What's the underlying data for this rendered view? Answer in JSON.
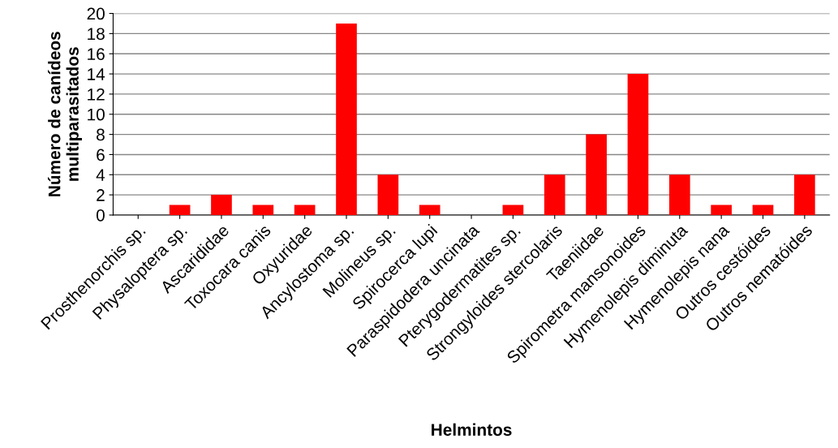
{
  "chart_data": {
    "type": "bar",
    "xlabel": "Helmintos",
    "ylabel": "Número de canídeos\nmultiparasitados",
    "categories": [
      "Prosthenorchis sp.",
      "Physaloptera sp.",
      "Ascarididae",
      "Toxocara canis",
      "Oxyuridae",
      "Ancylostoma sp.",
      "Molineus sp.",
      "Spirocerca lupi",
      "Paraspidodera uncinata",
      "Pterygodermatites sp.",
      "Strongyloides stercolaris",
      "Taeniidae",
      "Spirometra mansonoides",
      "Hymenolepis diminuta",
      "Hymenolepis nana",
      "Outros cestóides",
      "Outros nematóides"
    ],
    "values": [
      0,
      1,
      2,
      1,
      1,
      19,
      4,
      1,
      0,
      1,
      4,
      8,
      14,
      4,
      1,
      1,
      4
    ],
    "color": "#ff0000",
    "ylim": [
      0,
      20
    ],
    "yticks": [
      0,
      2,
      4,
      6,
      8,
      10,
      12,
      14,
      16,
      18,
      20
    ],
    "grid": "y",
    "legend": false
  }
}
